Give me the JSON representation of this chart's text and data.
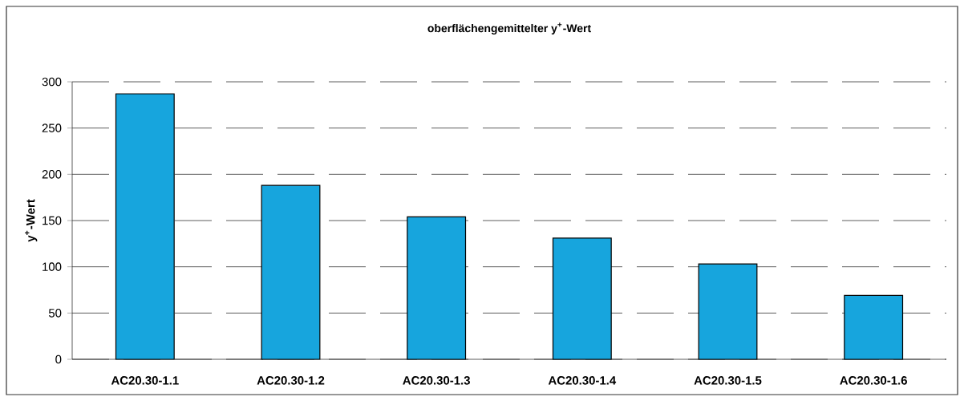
{
  "chart_data": {
    "type": "bar",
    "title": "oberflächengemittelter y$^{+}$-Wert",
    "ylabel": "y$^{+}$-Wert",
    "categories": [
      "AC20.30-1.1",
      "AC20.30-1.2",
      "AC20.30-1.3",
      "AC20.30-1.4",
      "AC20.30-1.5",
      "AC20.30-1.6"
    ],
    "values": [
      287,
      188,
      154,
      131,
      103,
      69
    ],
    "color": "#17a5dd",
    "ylim": [
      0,
      300
    ],
    "yticks": [
      0,
      50,
      100,
      150,
      200,
      250,
      300
    ],
    "grid": "y"
  }
}
